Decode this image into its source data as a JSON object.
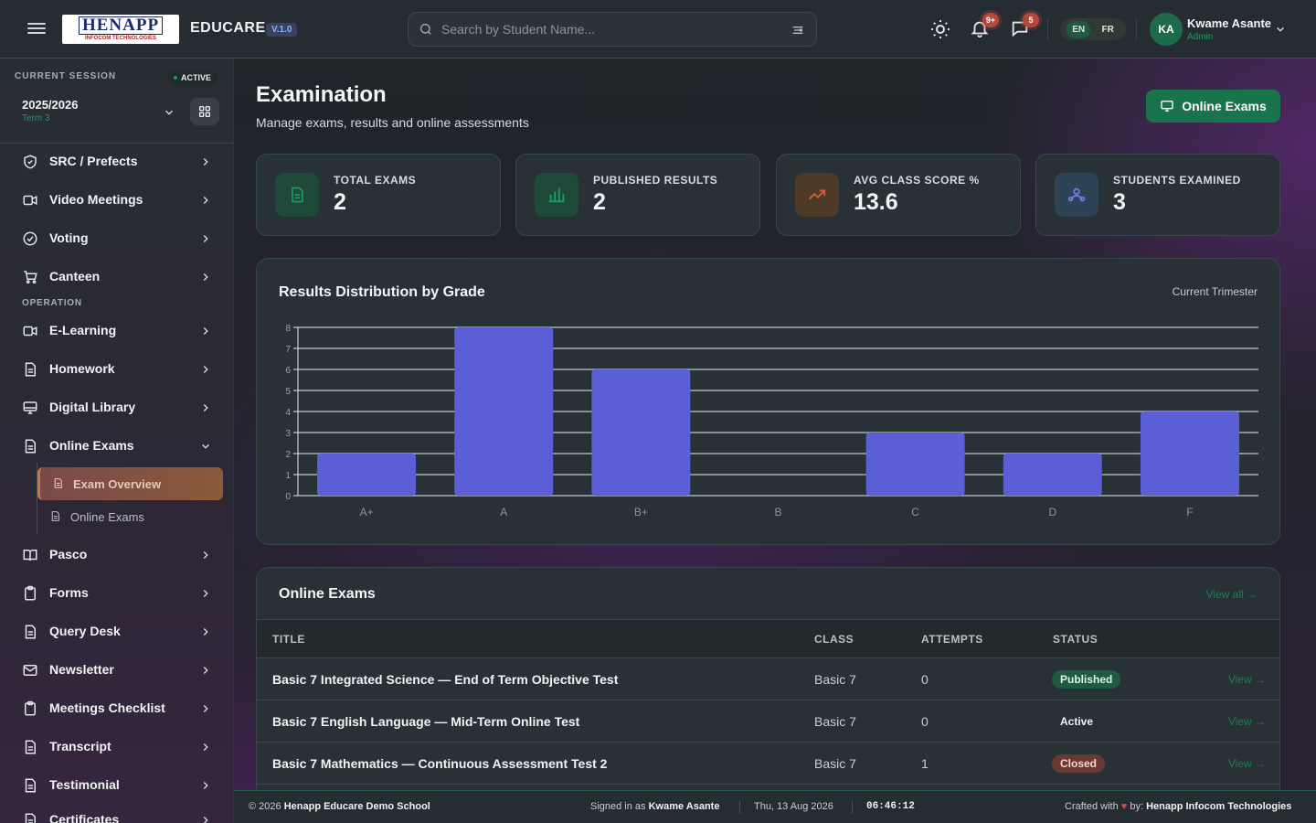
{
  "header": {
    "logo_text": "HENAPP",
    "logo_sub": "INFOCOM TECHNOLOGIES",
    "brand": "EDUCARE",
    "version": "V.1.0",
    "search_placeholder": "Search by Student Name...",
    "notifications_count": "9+",
    "messages_count": "5",
    "languages": [
      "EN",
      "FR"
    ],
    "user_initials": "KA",
    "user_name": "Kwame Asante",
    "user_role": "Admin"
  },
  "sidebar": {
    "session_label": "CURRENT SESSION",
    "session_status": "ACTIVE",
    "session_year": "2025/2026",
    "session_term": "Term 3",
    "items_top": [
      {
        "label": "SRC / Prefects",
        "icon": "shield-icon"
      },
      {
        "label": "Video Meetings",
        "icon": "video-icon"
      },
      {
        "label": "Voting",
        "icon": "check-circle-icon"
      },
      {
        "label": "Canteen",
        "icon": "cart-icon"
      }
    ],
    "section_operation": "OPERATION",
    "items_operation": [
      {
        "label": "E-Learning",
        "icon": "video-icon"
      },
      {
        "label": "Homework",
        "icon": "document-icon"
      },
      {
        "label": "Digital Library",
        "icon": "monitor-icon"
      },
      {
        "label": "Online Exams",
        "icon": "document-icon"
      }
    ],
    "sub_items": [
      {
        "label": "Exam Overview",
        "active": true
      },
      {
        "label": "Online Exams",
        "active": false
      }
    ],
    "items_bottom": [
      {
        "label": "Pasco",
        "icon": "book-icon"
      },
      {
        "label": "Forms",
        "icon": "clipboard-icon"
      },
      {
        "label": "Query Desk",
        "icon": "document-icon"
      },
      {
        "label": "Newsletter",
        "icon": "mail-icon"
      },
      {
        "label": "Meetings Checklist",
        "icon": "clipboard-icon"
      },
      {
        "label": "Transcript",
        "icon": "document-icon"
      },
      {
        "label": "Testimonial",
        "icon": "document-icon"
      },
      {
        "label": "Certificates",
        "icon": "document-icon"
      }
    ]
  },
  "page": {
    "title": "Examination",
    "subtitle": "Manage exams, results and online assessments",
    "online_exams_button": "Online Exams"
  },
  "stats": [
    {
      "label": "TOTAL EXAMS",
      "value": "2",
      "icon": "document-icon",
      "color": "#1e9a63"
    },
    {
      "label": "PUBLISHED RESULTS",
      "value": "2",
      "icon": "bar-chart-icon",
      "color": "#1e9a63"
    },
    {
      "label": "AVG CLASS SCORE %",
      "value": "13.6",
      "icon": "trending-up-icon",
      "color": "#c0572e"
    },
    {
      "label": "STUDENTS EXAMINED",
      "value": "3",
      "icon": "users-icon",
      "color": "#5a6ad8"
    }
  ],
  "chart_card": {
    "title": "Results Distribution by Grade",
    "period": "Current Trimester"
  },
  "chart_data": {
    "type": "bar",
    "categories": [
      "A+",
      "A",
      "B+",
      "B",
      "C",
      "D",
      "F"
    ],
    "values": [
      2,
      8,
      6,
      0,
      3,
      2,
      4
    ],
    "title": "Results Distribution by Grade",
    "xlabel": "",
    "ylabel": "",
    "ylim": [
      0,
      8
    ],
    "yticks": [
      "0",
      "1",
      "2",
      "3",
      "4",
      "5",
      "6",
      "7",
      "8"
    ],
    "grid": true,
    "bar_color": "#5a5fd6"
  },
  "exams_card": {
    "title": "Online Exams",
    "view_all": "View all →",
    "columns": [
      "TITLE",
      "CLASS",
      "ATTEMPTS",
      "STATUS"
    ],
    "rows": [
      {
        "title": "Basic 7 Integrated Science — End of Term Objective Test",
        "class": "Basic 7",
        "attempts": "0",
        "status": "Published",
        "status_color": "#1f5a43",
        "view": "View →"
      },
      {
        "title": "Basic 7 English Language — Mid-Term Online Test",
        "class": "Basic 7",
        "attempts": "0",
        "status": "Active",
        "status_color": "#283136",
        "view": "View →"
      },
      {
        "title": "Basic 7 Mathematics — Continuous Assessment Test 2",
        "class": "Basic 7",
        "attempts": "1",
        "status": "Closed",
        "status_color": "#6a3a32",
        "view": "View →"
      }
    ]
  },
  "footer": {
    "copyright_prefix": "© 2026",
    "school": "Henapp Educare Demo School",
    "signed_prefix": "Signed in as",
    "signed_user": "Kwame Asante",
    "date": "Thu, 13 Aug 2026",
    "time": "06:46:12",
    "crafted_prefix": "Crafted with",
    "heart": "♥",
    "crafted_by": "by:",
    "company": "Henapp Infocom Technologies"
  }
}
